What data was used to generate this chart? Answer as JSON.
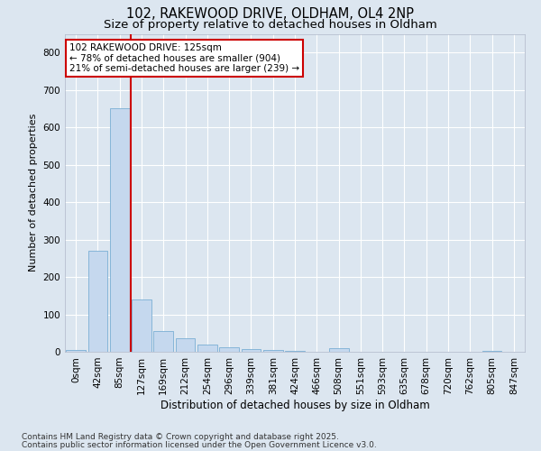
{
  "title1": "102, RAKEWOOD DRIVE, OLDHAM, OL4 2NP",
  "title2": "Size of property relative to detached houses in Oldham",
  "xlabel": "Distribution of detached houses by size in Oldham",
  "ylabel": "Number of detached properties",
  "bin_labels": [
    "0sqm",
    "42sqm",
    "85sqm",
    "127sqm",
    "169sqm",
    "212sqm",
    "254sqm",
    "296sqm",
    "339sqm",
    "381sqm",
    "424sqm",
    "466sqm",
    "508sqm",
    "551sqm",
    "593sqm",
    "635sqm",
    "678sqm",
    "720sqm",
    "762sqm",
    "805sqm",
    "847sqm"
  ],
  "bar_heights": [
    5,
    270,
    650,
    140,
    55,
    35,
    20,
    12,
    8,
    5,
    3,
    0,
    10,
    0,
    0,
    0,
    0,
    0,
    0,
    3,
    0
  ],
  "bar_color": "#c5d8ee",
  "bar_edgecolor": "#7aafd4",
  "vline_color": "#cc0000",
  "vline_pos": 2.5,
  "annotation_text": "102 RAKEWOOD DRIVE: 125sqm\n← 78% of detached houses are smaller (904)\n21% of semi-detached houses are larger (239) →",
  "annotation_box_facecolor": "#ffffff",
  "annotation_box_edgecolor": "#cc0000",
  "ylim": [
    0,
    850
  ],
  "yticks": [
    0,
    100,
    200,
    300,
    400,
    500,
    600,
    700,
    800
  ],
  "footnote1": "Contains HM Land Registry data © Crown copyright and database right 2025.",
  "footnote2": "Contains public sector information licensed under the Open Government Licence v3.0.",
  "bg_color": "#dce6f0",
  "plot_bg_color": "#dce6f0",
  "title1_fontsize": 10.5,
  "title2_fontsize": 9.5,
  "xlabel_fontsize": 8.5,
  "ylabel_fontsize": 8,
  "tick_fontsize": 7.5,
  "annot_fontsize": 7.5,
  "footnote_fontsize": 6.5,
  "grid_color": "#ffffff"
}
